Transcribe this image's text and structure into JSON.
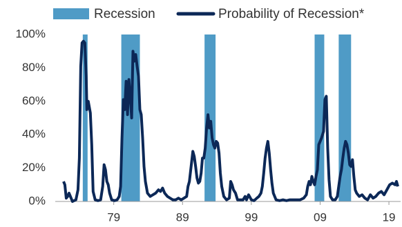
{
  "chart_data": {
    "type": "line",
    "recessions": {
      "name": "Recession",
      "color": "#4f9bc6",
      "periods": [
        [
          1974.5,
          1975.2
        ],
        [
          1980.1,
          1982.8
        ],
        [
          1992.2,
          1993.8
        ],
        [
          2008.2,
          2009.6
        ],
        [
          2011.7,
          2013.5
        ]
      ]
    },
    "series": [
      {
        "name": "Probability of Recession*",
        "color": "#0c2857",
        "x": [
          1971.7,
          1971.9,
          1972.1,
          1972.3,
          1972.5,
          1972.7,
          1973.0,
          1973.5,
          1973.8,
          1974.0,
          1974.2,
          1974.4,
          1974.6,
          1974.8,
          1975.0,
          1975.1,
          1975.3,
          1975.6,
          1975.8,
          1976.0,
          1976.3,
          1976.7,
          1977.1,
          1977.4,
          1977.6,
          1977.8,
          1978.0,
          1978.2,
          1978.4,
          1978.7,
          1979.1,
          1979.5,
          1979.8,
          1980.0,
          1980.2,
          1980.4,
          1980.6,
          1980.8,
          1981.0,
          1981.2,
          1981.4,
          1981.6,
          1981.8,
          1982.0,
          1982.2,
          1982.4,
          1982.6,
          1982.8,
          1983.0,
          1983.2,
          1983.4,
          1983.6,
          1983.9,
          1984.3,
          1984.7,
          1985.1,
          1985.5,
          1985.8,
          1986.1,
          1986.4,
          1986.8,
          1987.2,
          1987.6,
          1988.0,
          1988.4,
          1988.8,
          1989.2,
          1989.6,
          1989.8,
          1990.0,
          1990.5,
          1990.7,
          1990.9,
          1991.1,
          1991.3,
          1991.5,
          1991.7,
          1991.9,
          1992.1,
          1992.3,
          1992.5,
          1992.7,
          1992.9,
          1993.1,
          1993.3,
          1993.5,
          1993.7,
          1993.9,
          1994.1,
          1994.3,
          1994.5,
          1994.7,
          1995.0,
          1995.4,
          1995.8,
          1996.0,
          1996.2,
          1996.4,
          1996.7,
          1997.0,
          1997.4,
          1997.8,
          1998.1,
          1998.3,
          1998.6,
          1999.0,
          1999.4,
          1999.8,
          2000.1,
          2000.4,
          2000.6,
          2000.8,
          2001.0,
          2001.2,
          2001.4,
          2001.6,
          2001.8,
          2002.0,
          2002.2,
          2002.6,
          2003.1,
          2003.6,
          2004.1,
          2004.6,
          2005.1,
          2005.6,
          2006.1,
          2006.6,
          2007.0,
          2007.2,
          2007.4,
          2007.6,
          2007.8,
          2008.0,
          2008.2,
          2008.4,
          2008.6,
          2008.8,
          2009.0,
          2009.2,
          2009.5,
          2009.7,
          2009.9,
          2010.1,
          2010.3,
          2010.5,
          2010.8,
          2011.2,
          2011.5,
          2011.7,
          2011.9,
          2012.1,
          2012.3,
          2012.5,
          2012.7,
          2012.9,
          2013.1,
          2013.3,
          2013.5,
          2013.7,
          2013.9,
          2014.1,
          2014.3,
          2014.7,
          2015.1,
          2015.5,
          2015.9,
          2016.3,
          2016.7,
          2017.1,
          2017.5,
          2017.9,
          2018.3,
          2018.7,
          2019.1,
          2019.5,
          2019.9,
          2020.1,
          2020.3
        ],
        "values": [
          12,
          10,
          2,
          3,
          5,
          3,
          0,
          1,
          7,
          26,
          81,
          95,
          96,
          95,
          75,
          55,
          60,
          53,
          34,
          6,
          1,
          0.5,
          1,
          9,
          22,
          19,
          12,
          10,
          5,
          1,
          0.5,
          1,
          3,
          9,
          38,
          61,
          55,
          72,
          52,
          73,
          63,
          50,
          90,
          84,
          88,
          81,
          75,
          55,
          52,
          38,
          21,
          12,
          5,
          3,
          4,
          5,
          7,
          6,
          8,
          5,
          3,
          2,
          1,
          1,
          2,
          1,
          2,
          3,
          9,
          12,
          30,
          27,
          21,
          14,
          11,
          12,
          17,
          26,
          26,
          32,
          44,
          52,
          44,
          48,
          38,
          34,
          32,
          36,
          35,
          29,
          17,
          9,
          3,
          1,
          2,
          12,
          10,
          7,
          5,
          1,
          1,
          1,
          3,
          1,
          4,
          1,
          0.5,
          2,
          3,
          5,
          9,
          17,
          26,
          32,
          36,
          29,
          19,
          11,
          5,
          1,
          0.5,
          1,
          0.5,
          1,
          1,
          1,
          1,
          2,
          4,
          9,
          12,
          10,
          15,
          12,
          10,
          15,
          19,
          34,
          36,
          38,
          42,
          61,
          63,
          32,
          13,
          3,
          1,
          1,
          3,
          9,
          15,
          19,
          26,
          32,
          36,
          34,
          29,
          22,
          21,
          25,
          15,
          7,
          5,
          3,
          4,
          2,
          1,
          4,
          2,
          3,
          5,
          6,
          4,
          7,
          10,
          11,
          10,
          12,
          9
        ]
      }
    ],
    "xlim": [
      1970.5,
      2020.7
    ],
    "xticks": [
      {
        "value": 1979,
        "label": "79"
      },
      {
        "value": 1989,
        "label": "89"
      },
      {
        "value": 1999,
        "label": "99"
      },
      {
        "value": 2009,
        "label": "09"
      },
      {
        "value": 2019,
        "label": "19"
      }
    ],
    "ylim": [
      0,
      100
    ],
    "yticks": [
      {
        "value": 0,
        "label": "0%"
      },
      {
        "value": 20,
        "label": "20%"
      },
      {
        "value": 40,
        "label": "40%"
      },
      {
        "value": 60,
        "label": "60%"
      },
      {
        "value": 80,
        "label": "80%"
      },
      {
        "value": 100,
        "label": "100%"
      }
    ]
  }
}
